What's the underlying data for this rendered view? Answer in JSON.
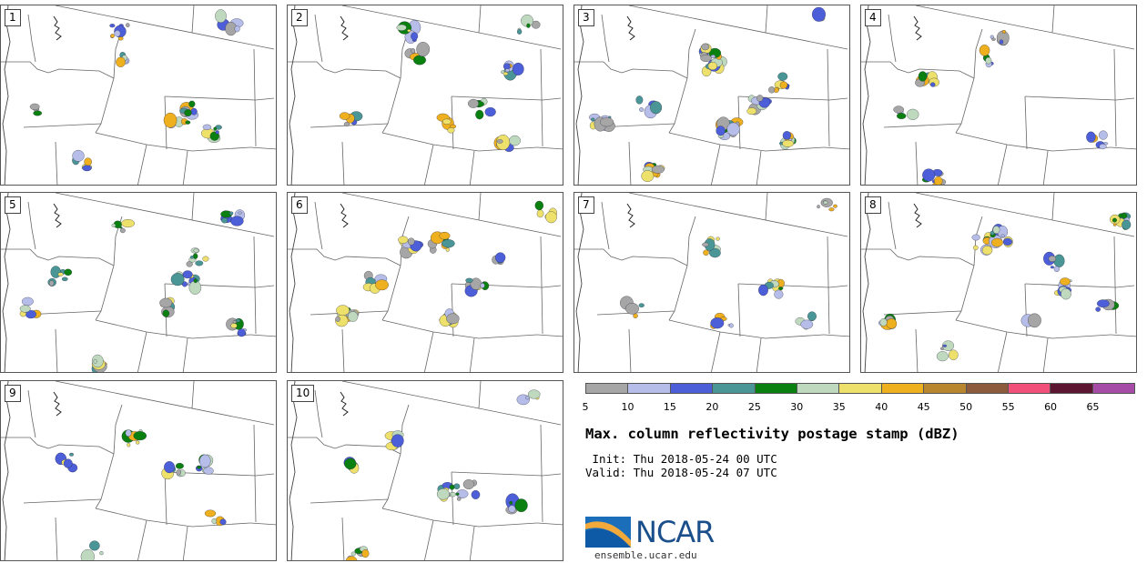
{
  "panels": [
    "1",
    "2",
    "3",
    "4",
    "5",
    "6",
    "7",
    "8",
    "9",
    "10"
  ],
  "colorbar": {
    "ticks": [
      "5",
      "10",
      "15",
      "20",
      "25",
      "30",
      "35",
      "40",
      "45",
      "50",
      "55",
      "60",
      "65"
    ],
    "colors": [
      "#a6a6a6",
      "#b5bde8",
      "#4d5ed9",
      "#4a9696",
      "#0a8010",
      "#bfd9bf",
      "#ede06b",
      "#efb020",
      "#b8862f",
      "#8c5a3c",
      "#f0507a",
      "#5c1632",
      "#a64ca6"
    ]
  },
  "title": "Max. column reflectivity postage stamp (dBZ)",
  "init": " Init: Thu 2018-05-24 00 UTC",
  "valid": "Valid: Thu 2018-05-24 07 UTC",
  "logo": {
    "text": "NCAR",
    "website": "ensemble.ucar.edu"
  }
}
